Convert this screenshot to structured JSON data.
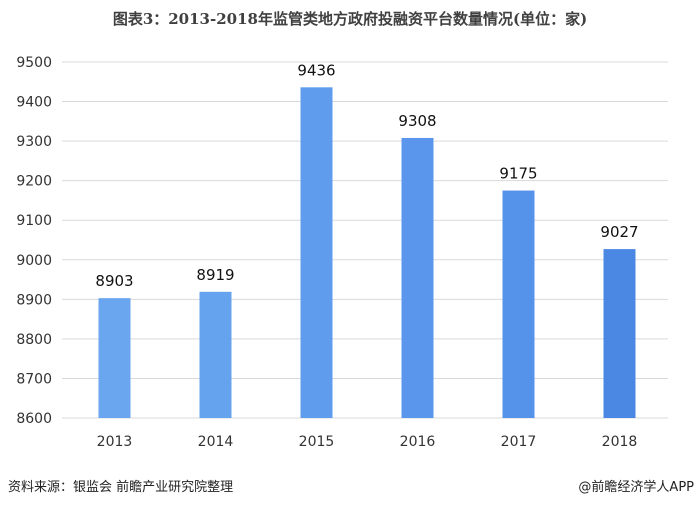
{
  "chart_data": {
    "type": "bar",
    "title": "图表3：2013-2018年监管类地方政府投融资平台数量情况(单位：家)",
    "categories": [
      "2013",
      "2014",
      "2015",
      "2016",
      "2017",
      "2018"
    ],
    "values": [
      8903,
      8919,
      9436,
      9308,
      9175,
      9027
    ],
    "ylim": [
      8600,
      9500
    ],
    "yticks": [
      8600,
      8700,
      8800,
      8900,
      9000,
      9100,
      9200,
      9300,
      9400,
      9500
    ],
    "grid": true,
    "data_labels": true,
    "bar_colors": [
      "#6aa6f0",
      "#66a3ef",
      "#5f9cee",
      "#5a97ec",
      "#5592ea",
      "#4a88e4"
    ]
  },
  "footer": {
    "source": "资料来源：银监会 前瞻产业研究院整理",
    "brand": "@前瞻经济学人APP"
  }
}
